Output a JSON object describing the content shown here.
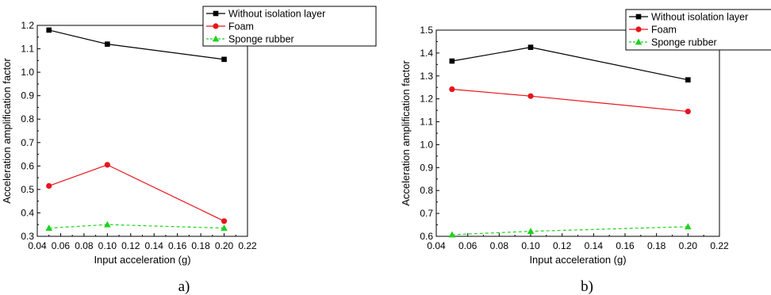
{
  "colors": {
    "Without isolation layer": "#000000",
    "Foam": "#e8141b",
    "Sponge rubber": "#1fd11f"
  },
  "chart_data": [
    {
      "type": "line",
      "panel_label": "a)",
      "xlabel": "Input acceleration (g)",
      "ylabel": "Acceleration amplification factor",
      "xlim": [
        0.04,
        0.22
      ],
      "ylim": [
        0.3,
        1.2
      ],
      "xticks": [
        "0.04",
        "0.06",
        "0.08",
        "0.10",
        "0.12",
        "0.14",
        "0.16",
        "0.18",
        "0.20",
        "0.22"
      ],
      "yticks": [
        "0.3",
        "0.4",
        "0.5",
        "0.6",
        "0.7",
        "0.8",
        "0.9",
        "1.0",
        "1.1",
        "1.2"
      ],
      "legend_position": "top-right",
      "x": [
        0.05,
        0.1,
        0.2
      ],
      "series": [
        {
          "name": "Without isolation layer",
          "marker": "square",
          "line": "solid",
          "values": [
            1.18,
            1.12,
            1.055
          ]
        },
        {
          "name": "Foam",
          "marker": "circle",
          "line": "solid",
          "values": [
            0.515,
            0.605,
            0.365
          ]
        },
        {
          "name": "Sponge rubber",
          "marker": "triangle",
          "line": "dashed",
          "values": [
            0.335,
            0.35,
            0.335
          ]
        }
      ]
    },
    {
      "type": "line",
      "panel_label": "b)",
      "xlabel": "Input acceleration (g)",
      "ylabel": "Acceleration amplification factor",
      "xlim": [
        0.04,
        0.22
      ],
      "ylim": [
        0.6,
        1.5
      ],
      "xticks": [
        "0.04",
        "0.06",
        "0.08",
        "0.10",
        "0.12",
        "0.14",
        "0.16",
        "0.18",
        "0.20",
        "0.22"
      ],
      "yticks": [
        "0.6",
        "0.7",
        "0.8",
        "0.9",
        "1.0",
        "1.1",
        "1.2",
        "1.3",
        "1.4",
        "1.5"
      ],
      "legend_position": "top-right",
      "x": [
        0.05,
        0.1,
        0.2
      ],
      "series": [
        {
          "name": "Without isolation layer",
          "marker": "square",
          "line": "solid",
          "values": [
            1.365,
            1.425,
            1.283
          ]
        },
        {
          "name": "Foam",
          "marker": "circle",
          "line": "solid",
          "values": [
            1.242,
            1.212,
            1.145
          ]
        },
        {
          "name": "Sponge rubber",
          "marker": "triangle",
          "line": "dashed",
          "values": [
            0.607,
            0.622,
            0.642
          ]
        }
      ]
    }
  ]
}
